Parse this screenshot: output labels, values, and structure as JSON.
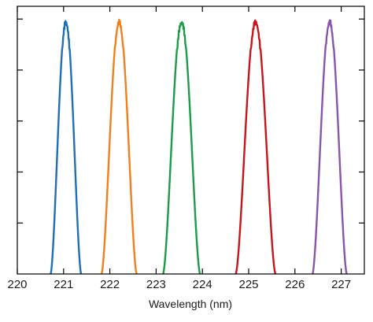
{
  "chart_data": {
    "type": "line",
    "title": "",
    "xlabel": "Wavelength (nm)",
    "ylabel": "",
    "xlim": [
      220,
      227.5
    ],
    "ylim": [
      0,
      1.05
    ],
    "x_ticks": [
      "220",
      "221",
      "222",
      "223",
      "224",
      "225",
      "226",
      "227"
    ],
    "y_ticks": [
      0.2,
      0.4,
      0.6,
      0.8,
      1.0
    ],
    "y_tick_labels": "none",
    "grid": false,
    "legend": "none",
    "series": [
      {
        "color": "#1f6fb2",
        "center": 221.05,
        "half_width": 0.33,
        "peak": 1.0
      },
      {
        "color": "#f07f1e",
        "center": 222.2,
        "half_width": 0.38,
        "peak": 1.0
      },
      {
        "color": "#1f9a48",
        "center": 223.55,
        "half_width": 0.4,
        "peak": 1.0
      },
      {
        "color": "#c4161c",
        "center": 225.15,
        "half_width": 0.43,
        "peak": 1.0
      },
      {
        "color": "#8a55a8",
        "center": 226.75,
        "half_width": 0.37,
        "peak": 1.0
      }
    ]
  }
}
